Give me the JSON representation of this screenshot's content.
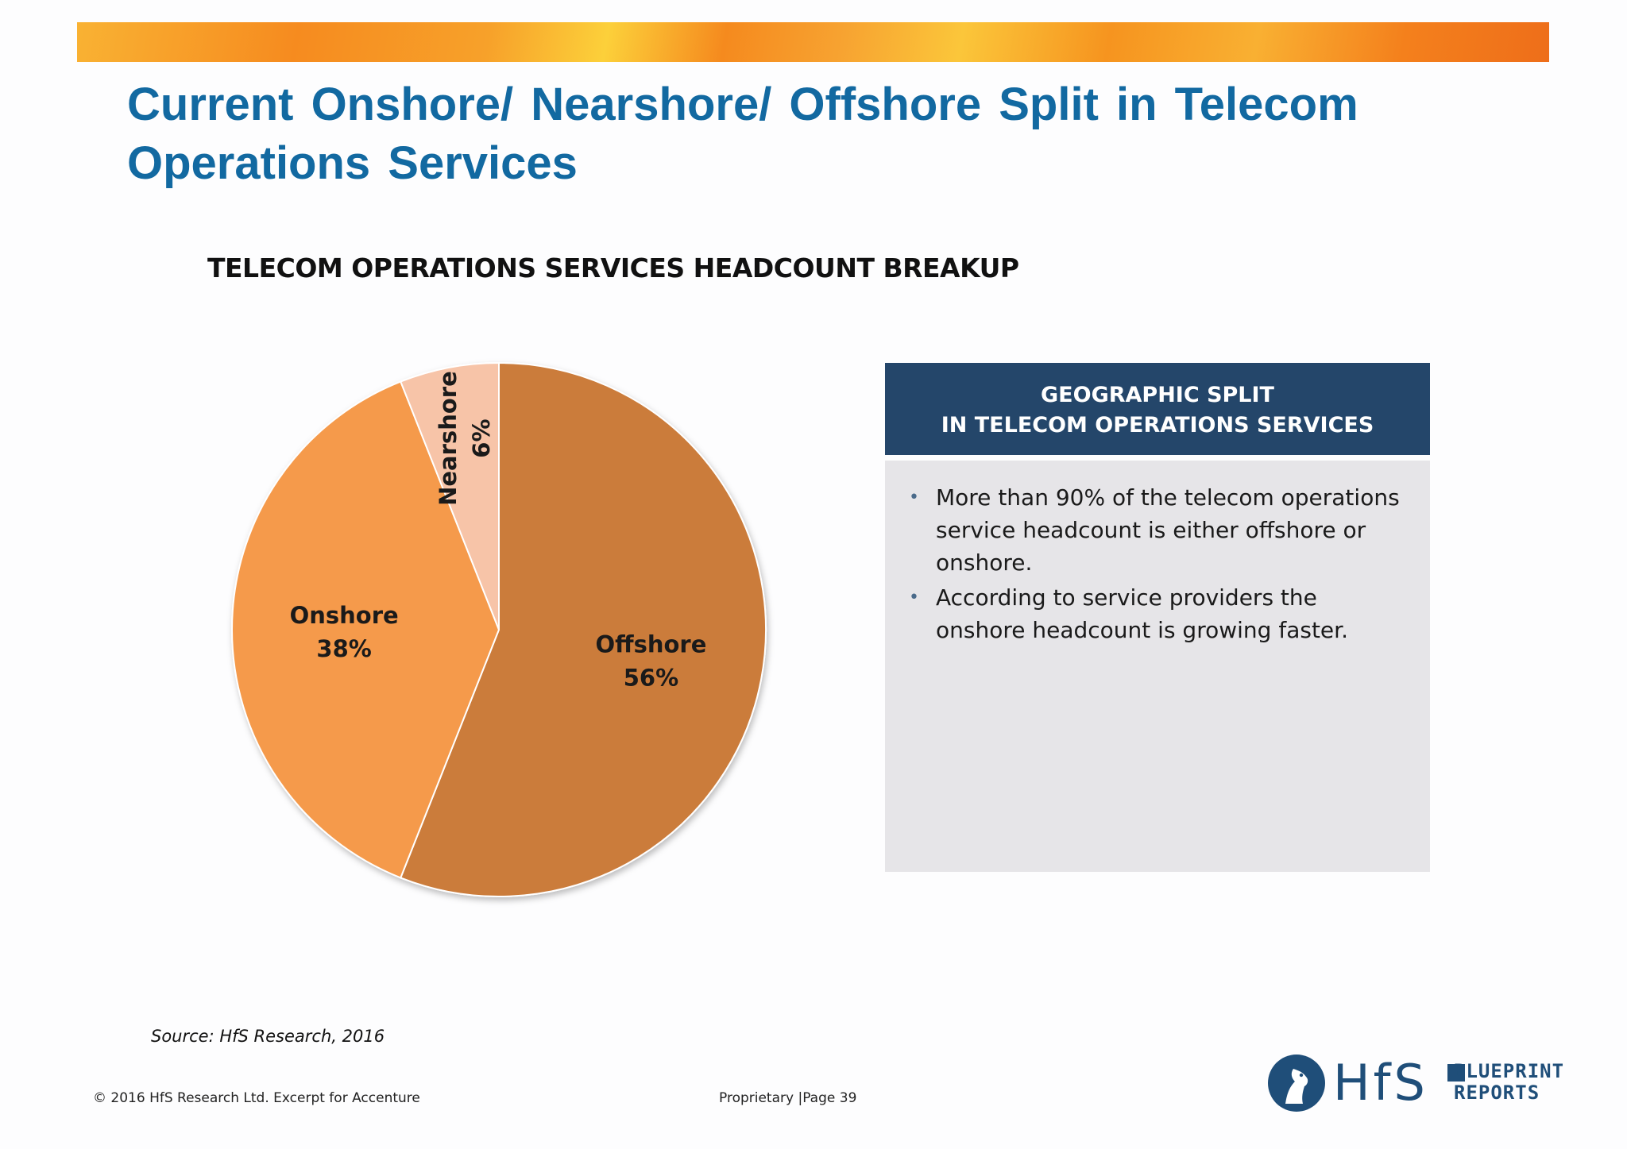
{
  "slide": {
    "title": "Current Onshore/ Nearshore/ Offshore Split in Telecom Operations Services",
    "chart_heading": "TELECOM OPERATIONS SERVICES HEADCOUNT BREAKUP"
  },
  "info_box": {
    "header_line1": "GEOGRAPHIC SPLIT",
    "header_line2": "IN TELECOM OPERATIONS SERVICES",
    "bullets": [
      "More than 90% of the telecom operations service headcount is either offshore or onshore.",
      "According to service providers the onshore headcount is growing faster."
    ]
  },
  "footer": {
    "source": "Source: HfS Research, 2016",
    "copyright": "© 2016 HfS Research Ltd.   Excerpt for Accenture",
    "page": "Proprietary  |Page 39"
  },
  "logo": {
    "brand": "HfS",
    "line1": "BLUEPRINT",
    "line2": "REPORTS",
    "color": "#1f4e79"
  },
  "chart_data": {
    "type": "pie",
    "title": "TELECOM OPERATIONS SERVICES HEADCOUNT BREAKUP",
    "slices": [
      {
        "name": "Offshore",
        "value": 56,
        "label": "56%",
        "color": "#cb7b3a"
      },
      {
        "name": "Onshore",
        "value": 38,
        "label": "38%",
        "color": "#f59a4c"
      },
      {
        "name": "Nearshore",
        "value": 6,
        "label": "6%",
        "color": "#f7c4a8"
      }
    ],
    "start": "12 o'clock",
    "direction": "clockwise"
  }
}
